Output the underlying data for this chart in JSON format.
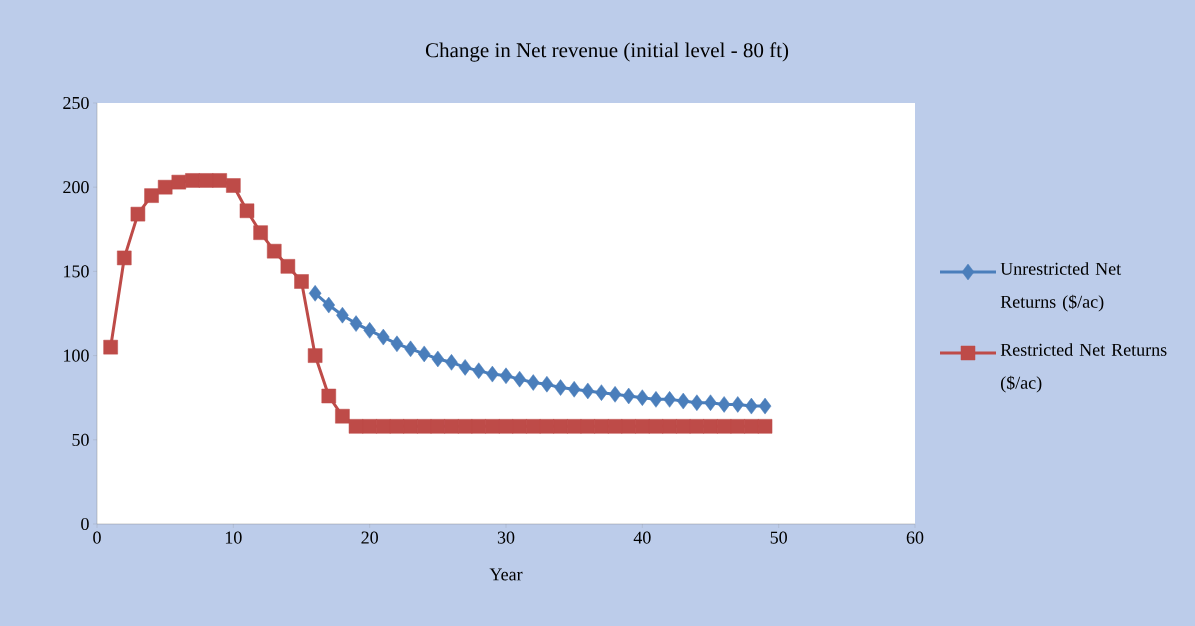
{
  "chart_data": {
    "type": "line",
    "title": "Change in Net revenue (initial level - 80 ft)",
    "xlabel": "Year",
    "xlim": [
      0,
      60
    ],
    "xticks": [
      0,
      10,
      20,
      30,
      40,
      50,
      60
    ],
    "ylim": [
      0,
      250
    ],
    "yticks": [
      0,
      50,
      100,
      150,
      200,
      250
    ],
    "grid": false,
    "legend": "right",
    "line_style": "solid",
    "series": [
      {
        "name": "Unrestricted Net Returns ($/ac)",
        "color": "#4a7ebb",
        "marker": "diamond",
        "x": [
          16,
          17,
          18,
          19,
          20,
          21,
          22,
          23,
          24,
          25,
          26,
          27,
          28,
          29,
          30,
          31,
          32,
          33,
          34,
          35,
          36,
          37,
          38,
          39,
          40,
          41,
          42,
          43,
          44,
          45,
          46,
          47,
          48,
          49
        ],
        "values": [
          137,
          130,
          124,
          119,
          115,
          111,
          107,
          104,
          101,
          98,
          96,
          93,
          91,
          89,
          88,
          86,
          84,
          83,
          81,
          80,
          79,
          78,
          77,
          76,
          75,
          74,
          74,
          73,
          72,
          72,
          71,
          71,
          70,
          70
        ]
      },
      {
        "name": "Restricted Net Returns ($/ac)",
        "color": "#be4b48",
        "marker": "square",
        "x": [
          1,
          2,
          3,
          4,
          5,
          6,
          7,
          8,
          9,
          10,
          11,
          12,
          13,
          14,
          15,
          16,
          17,
          18,
          19,
          20,
          21,
          22,
          23,
          24,
          25,
          26,
          27,
          28,
          29,
          30,
          31,
          32,
          33,
          34,
          35,
          36,
          37,
          38,
          39,
          40,
          41,
          42,
          43,
          44,
          45,
          46,
          47,
          48,
          49
        ],
        "values": [
          105,
          158,
          184,
          195,
          200,
          203,
          204,
          204,
          204,
          201,
          186,
          173,
          162,
          153,
          144,
          100,
          76,
          64,
          58,
          58,
          58,
          58,
          58,
          58,
          58,
          58,
          58,
          58,
          58,
          58,
          58,
          58,
          58,
          58,
          58,
          58,
          58,
          58,
          58,
          58,
          58,
          58,
          58,
          58,
          58,
          58,
          58,
          58,
          58
        ]
      }
    ]
  }
}
